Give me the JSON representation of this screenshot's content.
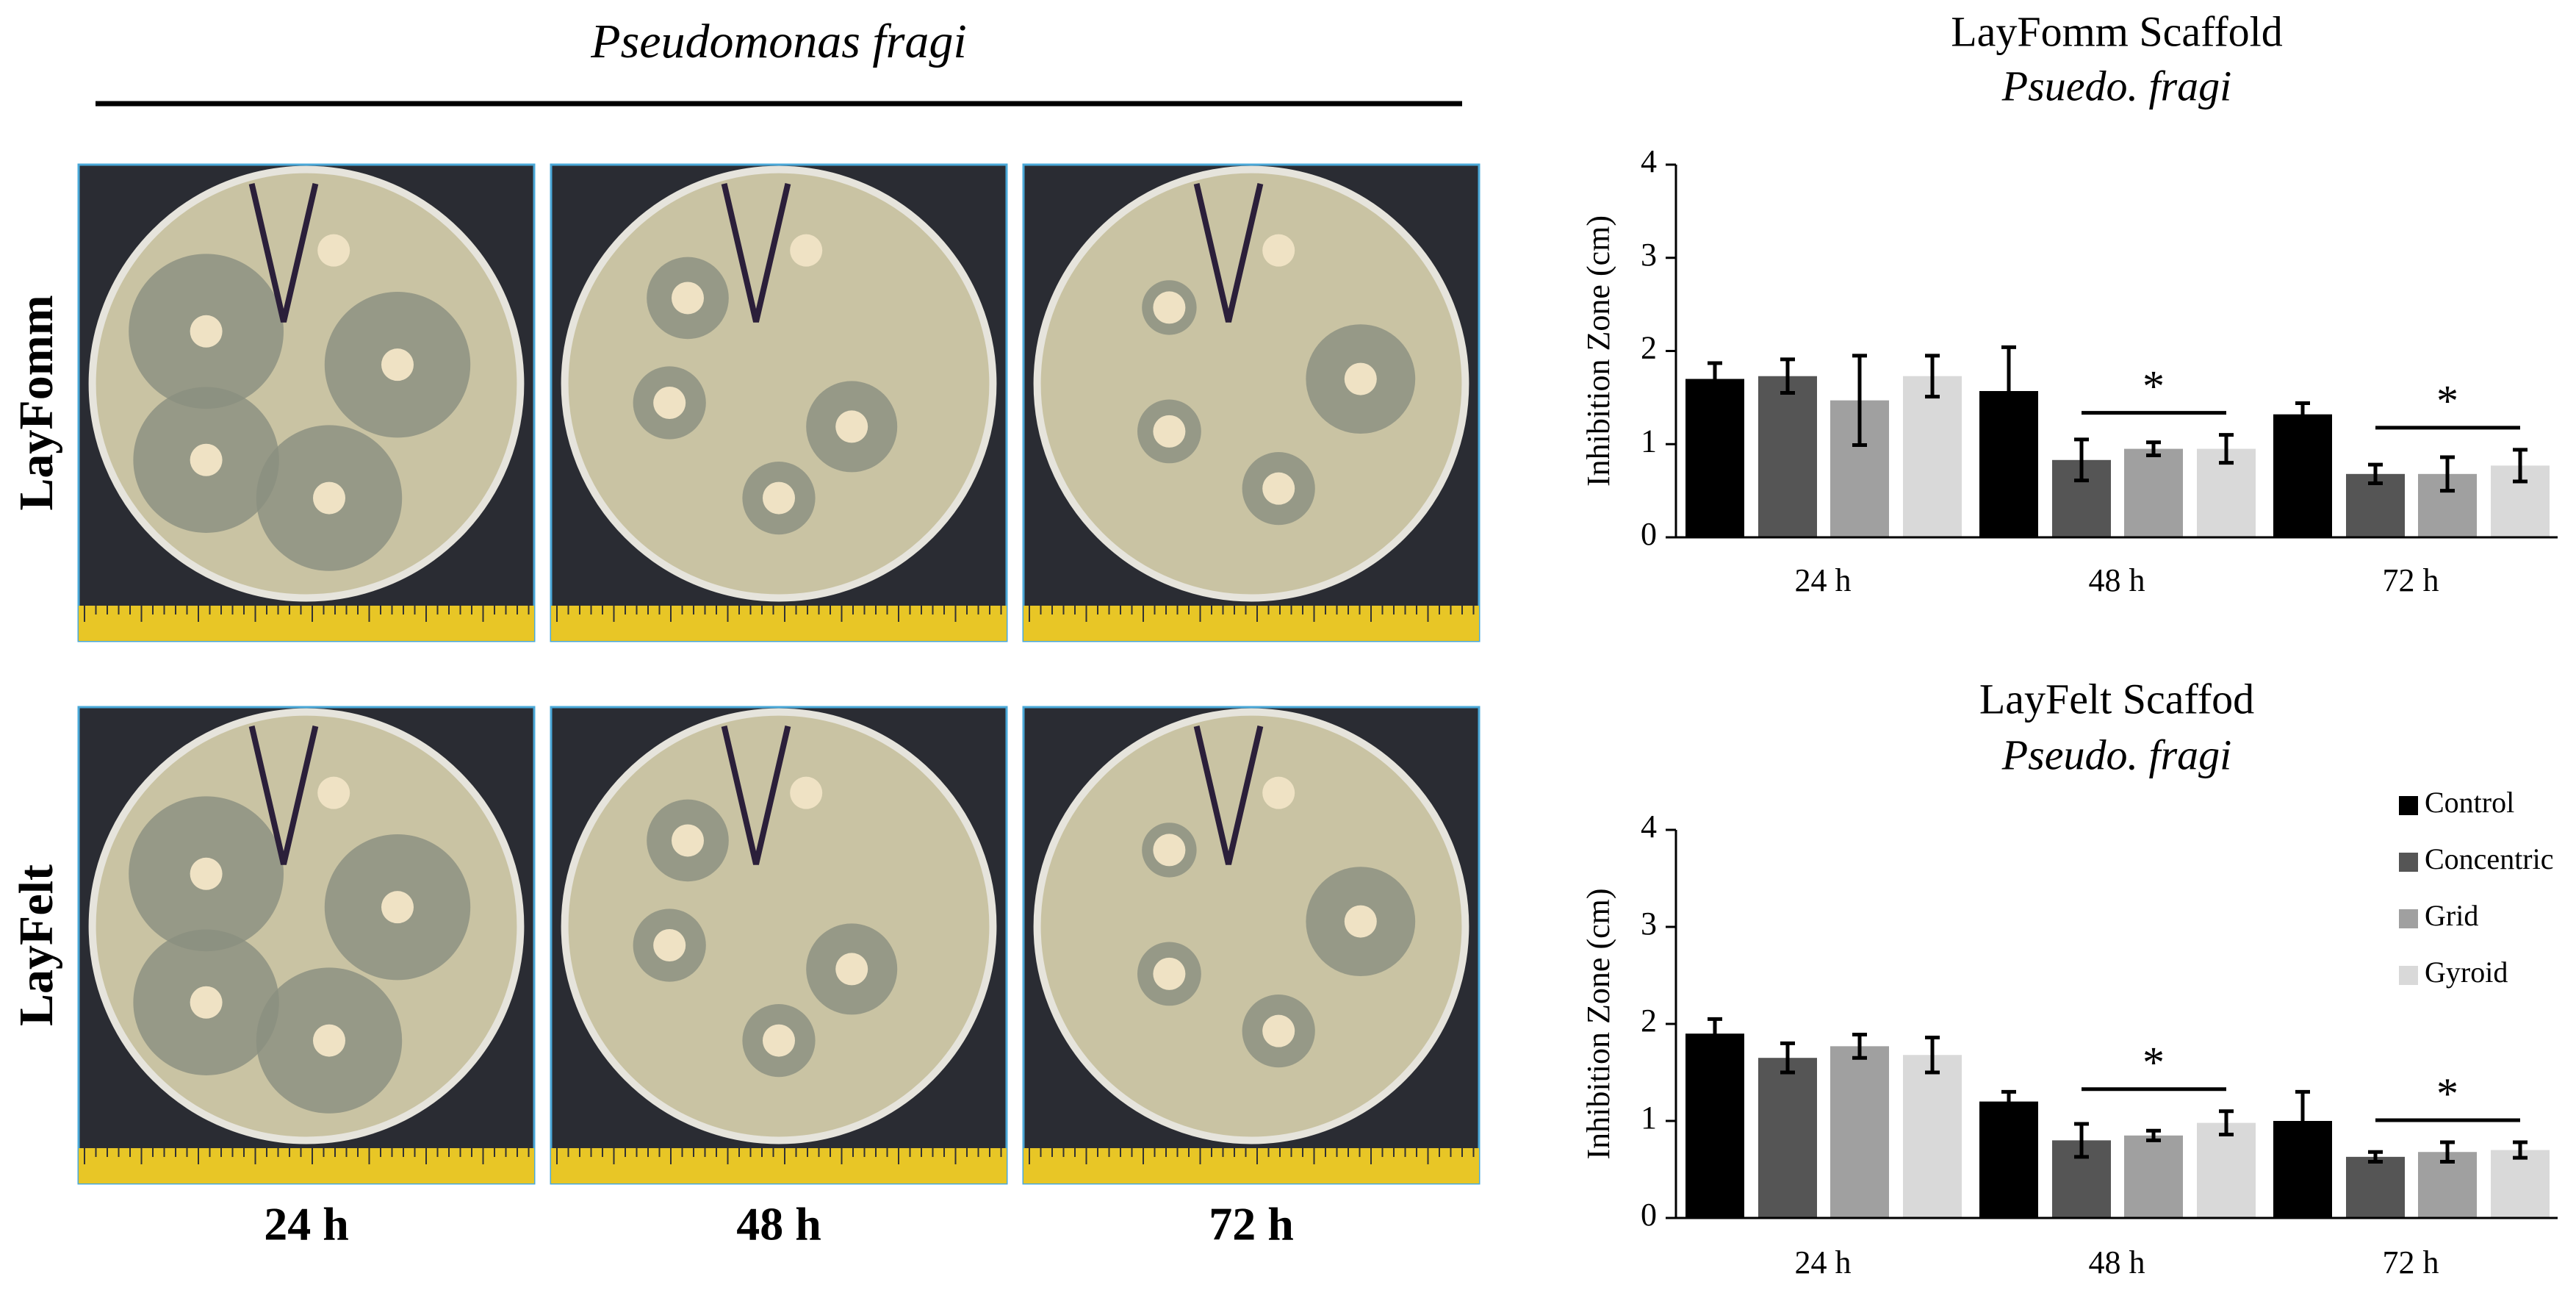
{
  "figure": {
    "title": "Pseudomonas fragi",
    "rows": [
      "LayFomm",
      "LayFelt"
    ],
    "columns": [
      "24 h",
      "48 h",
      "72 h"
    ]
  },
  "chart_data": [
    {
      "type": "bar",
      "title": "LayFomm Scaffold",
      "subtitle": "Psuedo. fragi",
      "y_label": "Inhibition Zone (cm)",
      "categories": [
        "24 h",
        "48 h",
        "72 h"
      ],
      "series": [
        {
          "color": "#000000",
          "values": [
            1.7,
            1.57,
            1.32
          ],
          "errors": [
            0.17,
            0.47,
            0.12
          ]
        },
        {
          "color": "#555555",
          "values": [
            1.73,
            0.83,
            0.68
          ],
          "errors": [
            0.18,
            0.22,
            0.1
          ]
        },
        {
          "color": "#a0a0a0",
          "values": [
            1.47,
            0.95,
            0.68
          ],
          "errors": [
            0.48,
            0.07,
            0.18
          ]
        },
        {
          "color": "#d9d9d9",
          "values": [
            1.73,
            0.95,
            0.77
          ],
          "errors": [
            0.22,
            0.15,
            0.17
          ]
        }
      ],
      "significance": [
        null,
        "*",
        "*"
      ],
      "ylim": [
        0,
        4
      ],
      "yticks": [
        0,
        1,
        2,
        3,
        4
      ]
    },
    {
      "type": "bar",
      "title": "LayFelt Scaffod",
      "subtitle": "Pseudo. fragi",
      "y_label": "Inhibition Zone (cm)",
      "categories": [
        "24 h",
        "48 h",
        "72 h"
      ],
      "series": [
        {
          "name": "Control",
          "color": "#000000",
          "values": [
            1.9,
            1.2,
            1.0
          ],
          "errors": [
            0.15,
            0.1,
            0.3
          ]
        },
        {
          "name": "Concentric",
          "color": "#555555",
          "values": [
            1.65,
            0.8,
            0.63
          ],
          "errors": [
            0.15,
            0.17,
            0.05
          ]
        },
        {
          "name": "Grid",
          "color": "#a0a0a0",
          "values": [
            1.77,
            0.85,
            0.68
          ],
          "errors": [
            0.12,
            0.05,
            0.1
          ]
        },
        {
          "name": "Gyroid",
          "color": "#d9d9d9",
          "values": [
            1.68,
            0.98,
            0.7
          ],
          "errors": [
            0.18,
            0.12,
            0.08
          ]
        }
      ],
      "significance": [
        null,
        "*",
        "*"
      ],
      "legend": "upper right",
      "ylim": [
        0,
        4
      ],
      "yticks": [
        0,
        1,
        2,
        3,
        4
      ]
    }
  ]
}
